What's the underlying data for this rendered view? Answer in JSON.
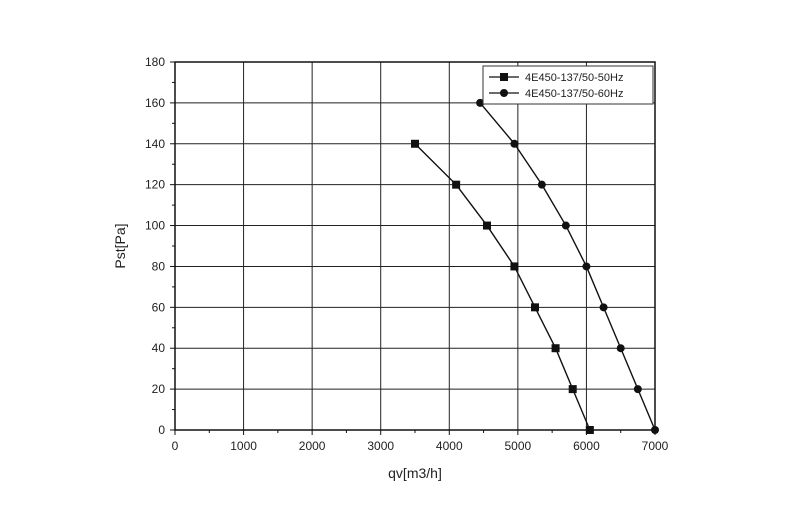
{
  "chart_data": {
    "type": "line",
    "xlabel": "qv[m3/h]",
    "ylabel": "Pst[Pa]",
    "xlim": [
      0,
      7000
    ],
    "ylim": [
      0,
      180
    ],
    "xticks": [
      0,
      1000,
      2000,
      3000,
      4000,
      5000,
      6000,
      7000
    ],
    "yticks": [
      0,
      20,
      40,
      60,
      80,
      100,
      120,
      140,
      160,
      180
    ],
    "grid": true,
    "legend_position": "top-right",
    "series": [
      {
        "name": "4E450-137/50-50Hz",
        "marker": "square",
        "points": [
          {
            "x": 3500,
            "y": 140
          },
          {
            "x": 4100,
            "y": 120
          },
          {
            "x": 4550,
            "y": 100
          },
          {
            "x": 4950,
            "y": 80
          },
          {
            "x": 5250,
            "y": 60
          },
          {
            "x": 5550,
            "y": 40
          },
          {
            "x": 5800,
            "y": 20
          },
          {
            "x": 6050,
            "y": 0
          }
        ]
      },
      {
        "name": "4E450-137/50-60Hz",
        "marker": "circle",
        "points": [
          {
            "x": 4450,
            "y": 160
          },
          {
            "x": 4950,
            "y": 140
          },
          {
            "x": 5350,
            "y": 120
          },
          {
            "x": 5700,
            "y": 100
          },
          {
            "x": 6000,
            "y": 80
          },
          {
            "x": 6250,
            "y": 60
          },
          {
            "x": 6500,
            "y": 40
          },
          {
            "x": 6750,
            "y": 20
          },
          {
            "x": 7000,
            "y": 0
          }
        ]
      }
    ]
  }
}
